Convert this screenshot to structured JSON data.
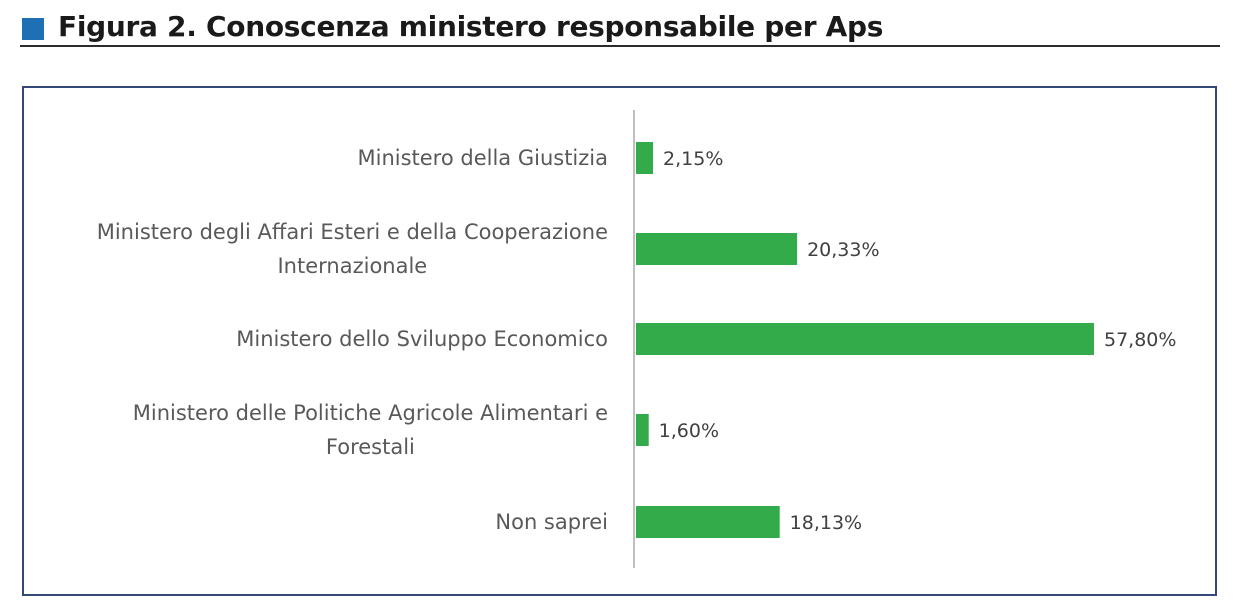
{
  "header": {
    "title": "Figura 2. Conoscenza ministero responsabile per Aps",
    "accent_color": "#1f6fb5"
  },
  "chart_data": {
    "type": "bar",
    "orientation": "horizontal",
    "title": "Figura 2. Conoscenza ministero responsabile per Aps",
    "categories": [
      [
        "Ministero della Giustizia"
      ],
      [
        "Ministero degli Affari Esteri e della Cooperazione",
        "Internazionale"
      ],
      [
        "Ministero dello Sviluppo Economico"
      ],
      [
        "Ministero delle Politiche Agricole Alimentari e",
        "Forestali"
      ],
      [
        "Non saprei"
      ]
    ],
    "values": [
      2.15,
      20.33,
      57.8,
      1.6,
      18.13
    ],
    "value_labels": [
      "2,15%",
      "20,33%",
      "57,80%",
      "1,60%",
      "18,13%"
    ],
    "bar_color": "#33ab4a",
    "axis_color": "#bfbfbf",
    "frame_color": "#34487a",
    "xlim": [
      0,
      57.8
    ],
    "grid": false,
    "legend": "none"
  }
}
